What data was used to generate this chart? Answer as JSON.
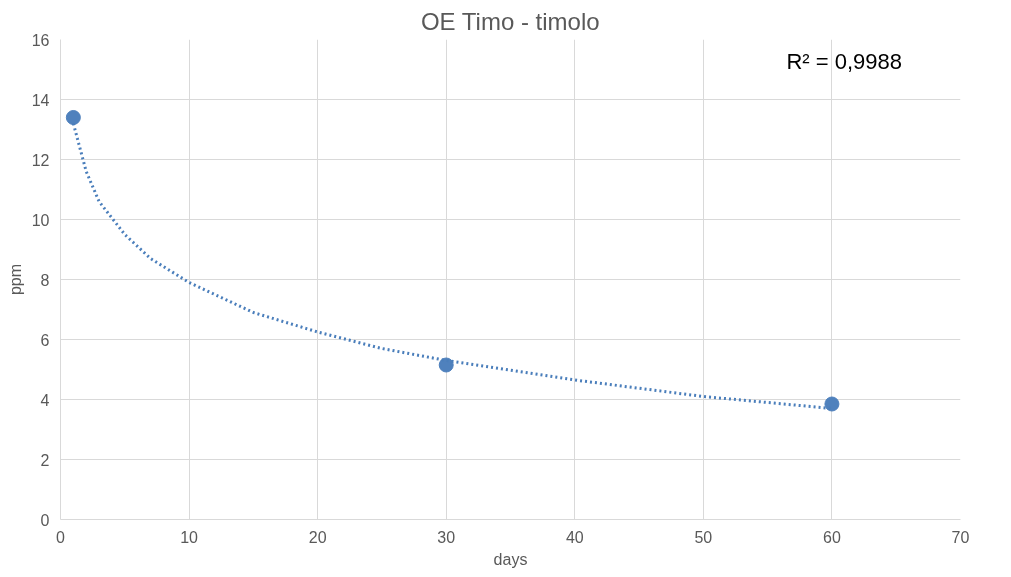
{
  "chart_data": {
    "type": "scatter",
    "title": "OE Timo - timolo",
    "xlabel": "days",
    "ylabel": "ppm",
    "xlim": [
      0,
      70
    ],
    "xticks": [
      0,
      10,
      20,
      30,
      40,
      50,
      60,
      70
    ],
    "ylim": [
      0,
      16
    ],
    "yticks": [
      0,
      2,
      4,
      6,
      8,
      10,
      12,
      14,
      16
    ],
    "grid": true,
    "marker": "circle",
    "annotations": [
      "R² = 0,9988"
    ],
    "series": [
      {
        "color": "#4f81bd",
        "x": [
          1,
          30,
          60
        ],
        "values": [
          13.4,
          5.15,
          3.85
        ]
      },
      {
        "type": "line",
        "color": "#4a7ebb",
        "line_style": "dotted",
        "marker": "none",
        "x": [
          1,
          2,
          3,
          5,
          7,
          10,
          15,
          20,
          25,
          30,
          40,
          50,
          60
        ],
        "values": [
          13.2,
          11.6,
          10.6,
          9.5,
          8.7,
          7.9,
          6.9,
          6.25,
          5.7,
          5.3,
          4.65,
          4.1,
          3.7
        ]
      }
    ]
  }
}
